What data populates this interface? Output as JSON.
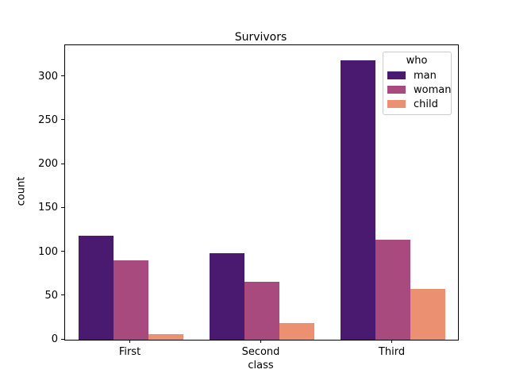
{
  "window": {
    "background": "#ffffff",
    "text_color": "#000000"
  },
  "chart_data": {
    "type": "bar",
    "title": "Survivors",
    "xlabel": "class",
    "ylabel": "count",
    "categories": [
      "First",
      "Second",
      "Third"
    ],
    "series": [
      {
        "name": "man",
        "color": "#4a1a70",
        "values": [
          119,
          99,
          319
        ]
      },
      {
        "name": "woman",
        "color": "#a84a7d",
        "values": [
          91,
          66,
          114
        ]
      },
      {
        "name": "child",
        "color": "#eb9172",
        "values": [
          6,
          19,
          58
        ]
      }
    ],
    "yticks": [
      0,
      50,
      100,
      150,
      200,
      250,
      300
    ],
    "ylim": [
      0,
      336
    ],
    "grid": false,
    "legend": {
      "title": "who",
      "position": "upper right",
      "entries": [
        "man",
        "woman",
        "child"
      ],
      "border_color": "#cccccc"
    },
    "bar_group_fraction": 0.8
  }
}
